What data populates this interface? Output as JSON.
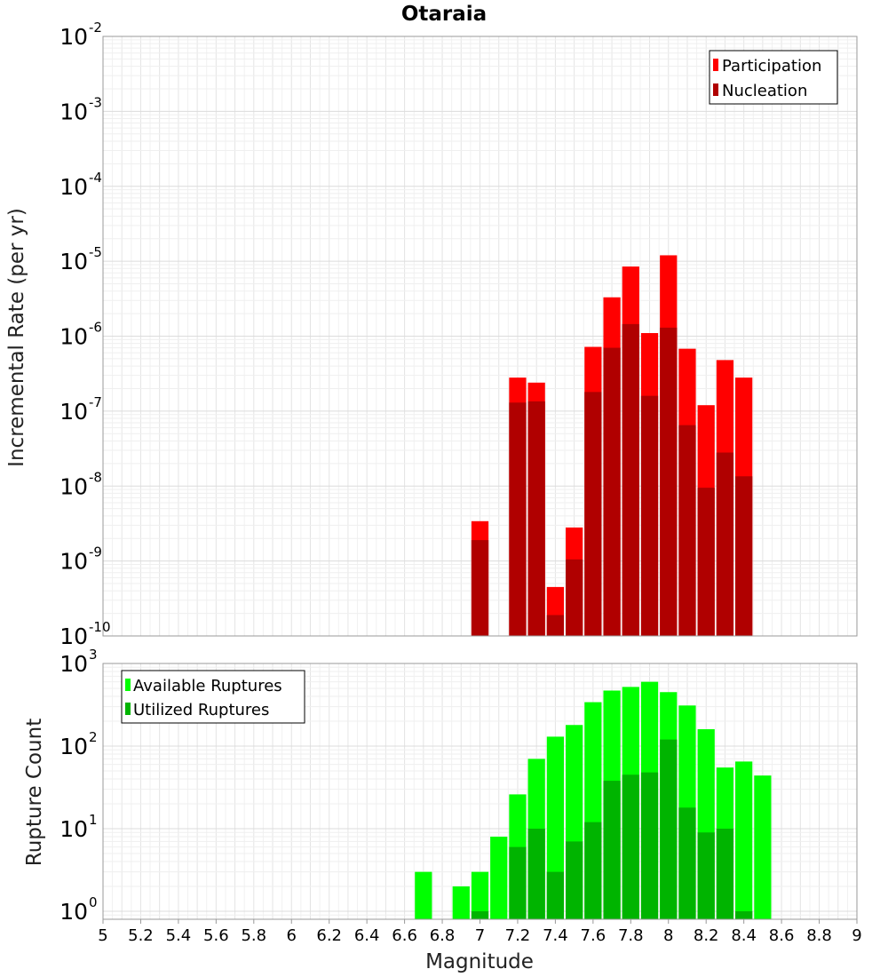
{
  "chart_data": {
    "title": "Otaraia",
    "xlabel": "Magnitude",
    "xlim": [
      5,
      9
    ],
    "x_ticks": [
      "5",
      "5.2",
      "5.4",
      "5.6",
      "5.8",
      "6",
      "6.2",
      "6.4",
      "6.6",
      "6.8",
      "7",
      "7.2",
      "7.4",
      "7.6",
      "7.8",
      "8",
      "8.2",
      "8.4",
      "8.6",
      "8.8",
      "9"
    ],
    "grid": true,
    "panels": [
      {
        "type": "bar",
        "ylabel": "Incremental Rate (per yr)",
        "y_scale": "log",
        "ylim": [
          1e-10,
          0.01
        ],
        "y_tick_exponents": [
          "-10",
          "-9",
          "-8",
          "-7",
          "-6",
          "-5",
          "-4",
          "-3",
          "-2"
        ],
        "legend_position": "top-right",
        "x": [
          7.0,
          7.1,
          7.2,
          7.3,
          7.4,
          7.5,
          7.6,
          7.7,
          7.8,
          7.9,
          8.0,
          8.1,
          8.2,
          8.3,
          8.4
        ],
        "series": [
          {
            "name": "Participation",
            "color": "#ff0000",
            "values": [
              3.4e-09,
              null,
              2.8e-07,
              2.4e-07,
              4.5e-10,
              2.8e-09,
              7.2e-07,
              3.3e-06,
              8.5e-06,
              1.1e-06,
              1.2e-05,
              6.8e-07,
              1.2e-07,
              4.8e-07,
              2.8e-07
            ]
          },
          {
            "name": "Nucleation",
            "color": "#b00000",
            "values": [
              1.9e-09,
              null,
              1.3e-07,
              1.35e-07,
              1.9e-10,
              1.05e-09,
              1.8e-07,
              7e-07,
              1.45e-06,
              1.6e-07,
              1.3e-06,
              6.5e-08,
              9.5e-09,
              2.8e-08,
              1.35e-08
            ]
          }
        ]
      },
      {
        "type": "bar",
        "ylabel": "Rupture Count",
        "y_scale": "log",
        "ylim": [
          0.8,
          1000
        ],
        "y_tick_exponents": [
          "0",
          "1",
          "2",
          "3"
        ],
        "legend_position": "top-left",
        "x": [
          6.7,
          6.8,
          6.9,
          7.0,
          7.1,
          7.2,
          7.3,
          7.4,
          7.5,
          7.6,
          7.7,
          7.8,
          7.9,
          8.0,
          8.1,
          8.2,
          8.3,
          8.4,
          8.5
        ],
        "series": [
          {
            "name": "Available Ruptures",
            "color": "#00ff00",
            "values": [
              3,
              null,
              2,
              3,
              8,
              26,
              70,
              130,
              180,
              340,
              470,
              520,
              600,
              450,
              310,
              160,
              55,
              65,
              44
            ]
          },
          {
            "name": "Utilized Ruptures",
            "color": "#00b400",
            "values": [
              null,
              null,
              null,
              1,
              null,
              6,
              10,
              3,
              7,
              12,
              38,
              45,
              48,
              120,
              18,
              9,
              10,
              1,
              null
            ]
          }
        ]
      }
    ]
  }
}
